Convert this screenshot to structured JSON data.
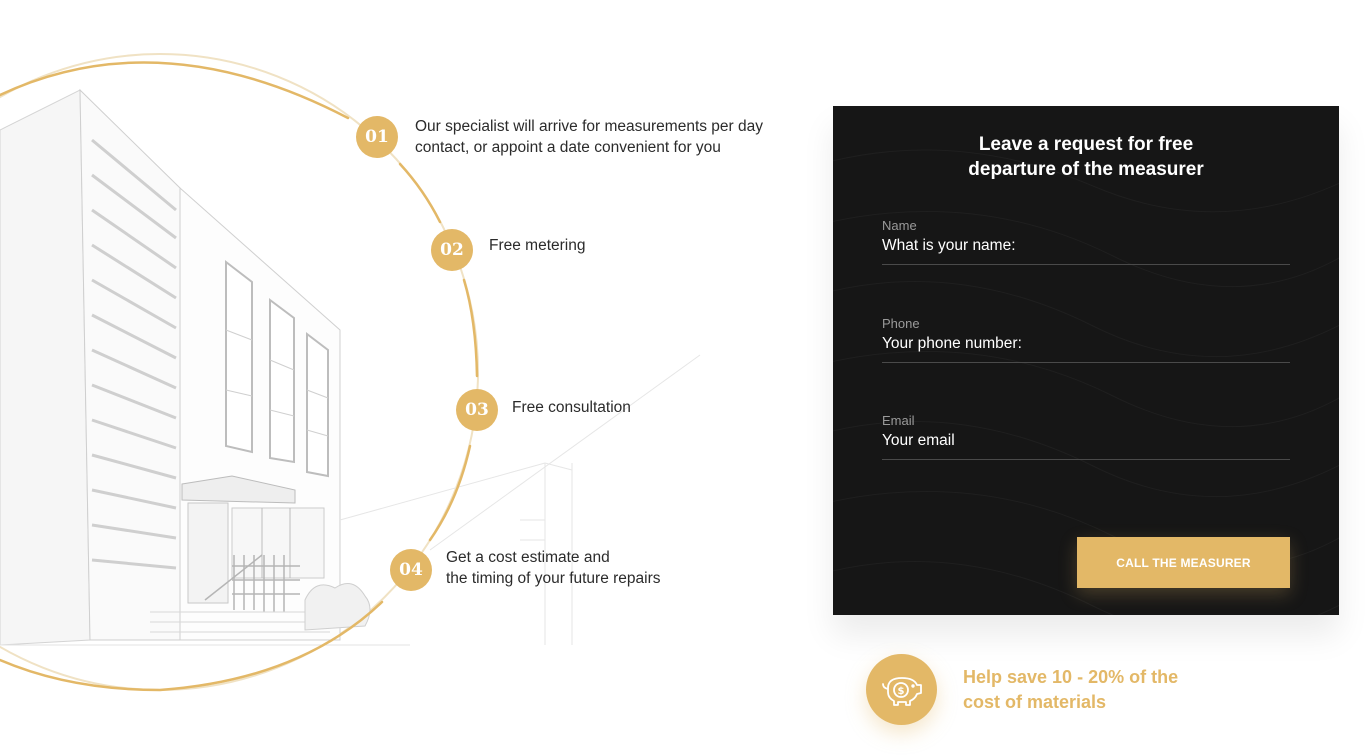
{
  "steps": [
    {
      "number": "01",
      "lines": [
        "Our specialist will arrive for measurements per day",
        "contact, or appoint a date convenient for you"
      ]
    },
    {
      "number": "02",
      "lines": [
        "Free metering"
      ]
    },
    {
      "number": "03",
      "lines": [
        "Free consultation"
      ]
    },
    {
      "number": "04",
      "lines": [
        "Get a cost estimate and",
        "the timing of your future repairs"
      ]
    }
  ],
  "form": {
    "title_lines": [
      "Leave a request for free",
      "departure of the measurer"
    ],
    "fields": [
      {
        "label": "Name",
        "placeholder": "What is your name:"
      },
      {
        "label": "Phone",
        "placeholder": "Your phone number:"
      },
      {
        "label": "Email",
        "placeholder": "Your email"
      }
    ],
    "submit_label": "CALL THE MEASURER"
  },
  "savings": {
    "icon": "piggy-bank-icon",
    "lines": [
      "Help save 10 - 20% of the",
      "cost of materials"
    ]
  },
  "colors": {
    "accent": "#e3b867",
    "panel": "#161616",
    "text": "#2b2b2b"
  }
}
